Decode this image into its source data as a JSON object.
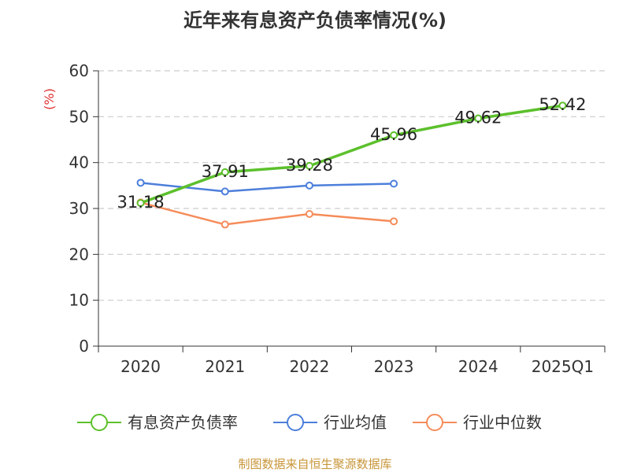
{
  "chart_data": {
    "type": "line",
    "title": "近年来有息资产负债率情况(%)",
    "ylabel": "(%)",
    "xlabel": "",
    "categories": [
      "2020",
      "2021",
      "2022",
      "2023",
      "2024",
      "2025Q1"
    ],
    "ylim": [
      0,
      60
    ],
    "yticks": [
      "0",
      "10",
      "20",
      "30",
      "40",
      "50",
      "60"
    ],
    "grid": true,
    "legend_position": "bottom",
    "series": [
      {
        "name": "有息资产负债率",
        "color": "#5cc02c",
        "values": [
          31.18,
          37.91,
          39.28,
          45.96,
          49.62,
          52.42
        ],
        "labels": [
          "31.18",
          "37.91",
          "39.28",
          "45.96",
          "49.62",
          "52.42"
        ]
      },
      {
        "name": "行业均值",
        "color": "#4d7fdb",
        "values": [
          35.6,
          33.7,
          35.0,
          35.4,
          null,
          null
        ]
      },
      {
        "name": "行业中位数",
        "color": "#f58c5a",
        "values": [
          31.3,
          26.5,
          28.8,
          27.2,
          null,
          null
        ]
      }
    ]
  },
  "source": "制图数据来自恒生聚源数据库",
  "colors": {
    "unit": "#e03030",
    "source": "#c8963a",
    "axis": "#333333",
    "grid": "#cccccc"
  }
}
